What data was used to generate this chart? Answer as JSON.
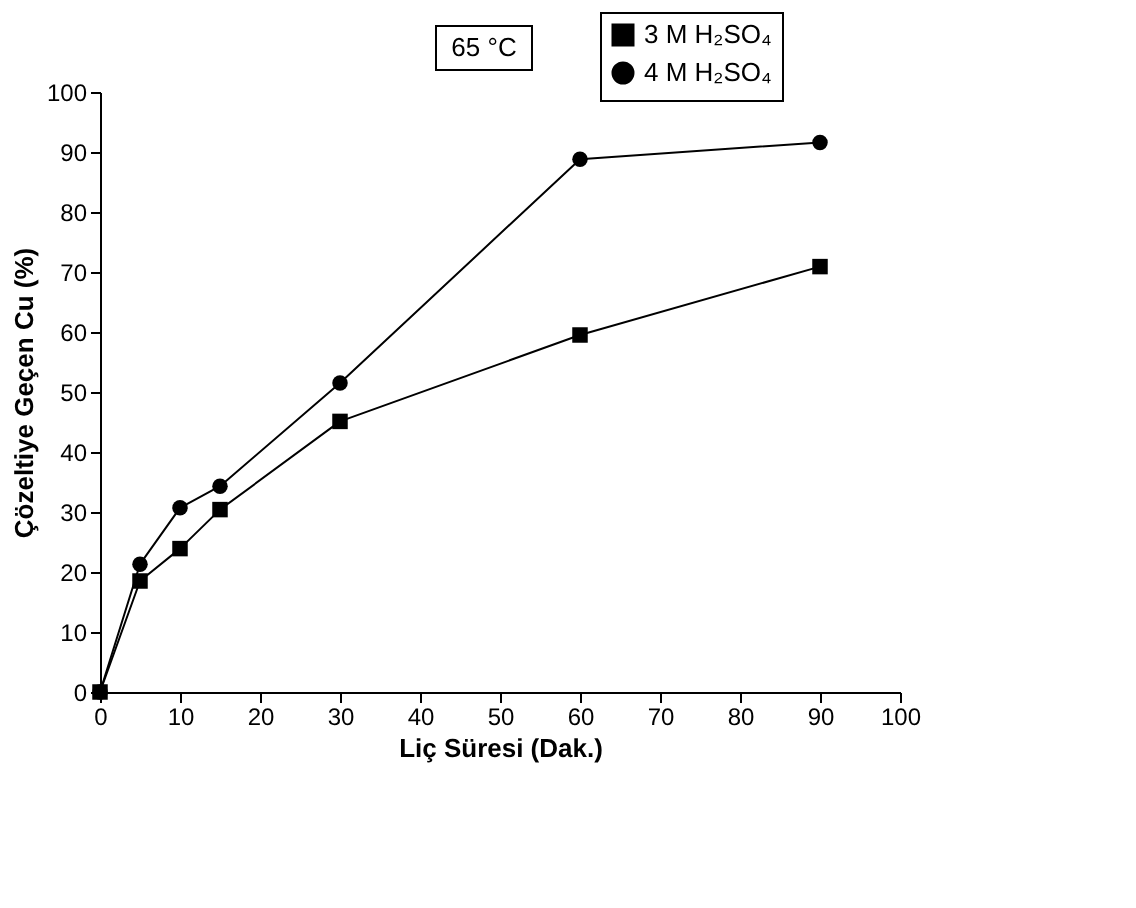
{
  "chart_data": {
    "type": "line",
    "xlabel": "Liç Süresi (Dak.)",
    "ylabel": "Çözeltiye Geçen Cu  (%)",
    "annotations": [
      "65 °C"
    ],
    "x": [
      0,
      5,
      10,
      15,
      30,
      60,
      90
    ],
    "series": [
      {
        "name": "3 M H₂SO₄",
        "color": "#000000",
        "marker": "square",
        "values": [
          0,
          18.5,
          23.9,
          30.4,
          45.1,
          59.5,
          70.9
        ]
      },
      {
        "name": "4 M H₂SO₄",
        "color": "#000000",
        "marker": "circle",
        "values": [
          0,
          21.3,
          30.7,
          34.3,
          51.5,
          88.8,
          91.6
        ]
      }
    ],
    "xlim": [
      0,
      100
    ],
    "xticks": [
      0,
      10,
      20,
      30,
      40,
      50,
      60,
      70,
      80,
      90,
      100
    ],
    "ylim": [
      0,
      100
    ],
    "yticks": [
      0,
      10,
      20,
      30,
      40,
      50,
      60,
      70,
      80,
      90,
      100
    ],
    "grid": false,
    "legend": "top right",
    "line_style": "solid"
  }
}
